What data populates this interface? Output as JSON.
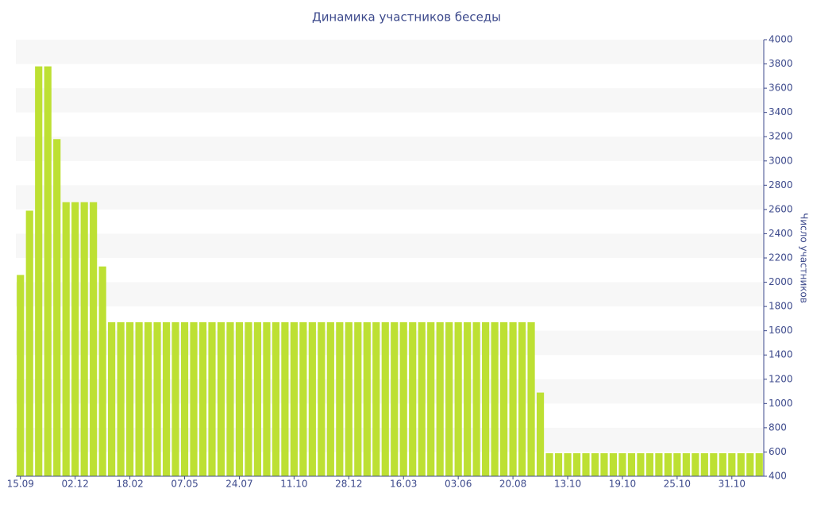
{
  "chart_data": {
    "type": "bar",
    "title": "Динамика участников беседы",
    "y_axis_label": "Число участников",
    "categories": [
      "15.09",
      null,
      null,
      null,
      null,
      null,
      "02.12",
      null,
      null,
      null,
      null,
      null,
      "18.02",
      null,
      null,
      null,
      null,
      null,
      "07.05",
      null,
      null,
      null,
      null,
      null,
      "24.07",
      null,
      null,
      null,
      null,
      null,
      "11.10",
      null,
      null,
      null,
      null,
      null,
      "28.12",
      null,
      null,
      null,
      null,
      null,
      "16.03",
      null,
      null,
      null,
      null,
      null,
      "03.06",
      null,
      null,
      null,
      null,
      null,
      "20.08",
      null,
      null,
      null,
      null,
      null,
      "13.10",
      null,
      null,
      null,
      null,
      null,
      "19.10",
      null,
      null,
      null,
      null,
      null,
      "25.10",
      null,
      null,
      null,
      null,
      null,
      "31.10",
      null,
      null,
      null
    ],
    "values": [
      2060,
      2590,
      3780,
      3780,
      3180,
      2660,
      2660,
      2660,
      2660,
      2130,
      1670,
      1670,
      1670,
      1670,
      1670,
      1670,
      1670,
      1670,
      1670,
      1670,
      1670,
      1670,
      1670,
      1670,
      1670,
      1670,
      1670,
      1670,
      1670,
      1670,
      1670,
      1670,
      1670,
      1670,
      1670,
      1670,
      1670,
      1670,
      1670,
      1670,
      1670,
      1670,
      1670,
      1670,
      1670,
      1670,
      1670,
      1670,
      1670,
      1670,
      1670,
      1670,
      1670,
      1670,
      1670,
      1670,
      1670,
      1090,
      590,
      590,
      590,
      590,
      590,
      590,
      590,
      590,
      590,
      590,
      590,
      590,
      590,
      590,
      590,
      590,
      590,
      590,
      590,
      590,
      590,
      590,
      590,
      590
    ],
    "color": "#bde033",
    "ylim": [
      400,
      4000
    ],
    "yticks": [
      400,
      600,
      800,
      1000,
      1200,
      1400,
      1600,
      1800,
      2000,
      2200,
      2400,
      2600,
      2800,
      3000,
      3200,
      3400,
      3600,
      3800,
      4000
    ],
    "grid": true
  }
}
